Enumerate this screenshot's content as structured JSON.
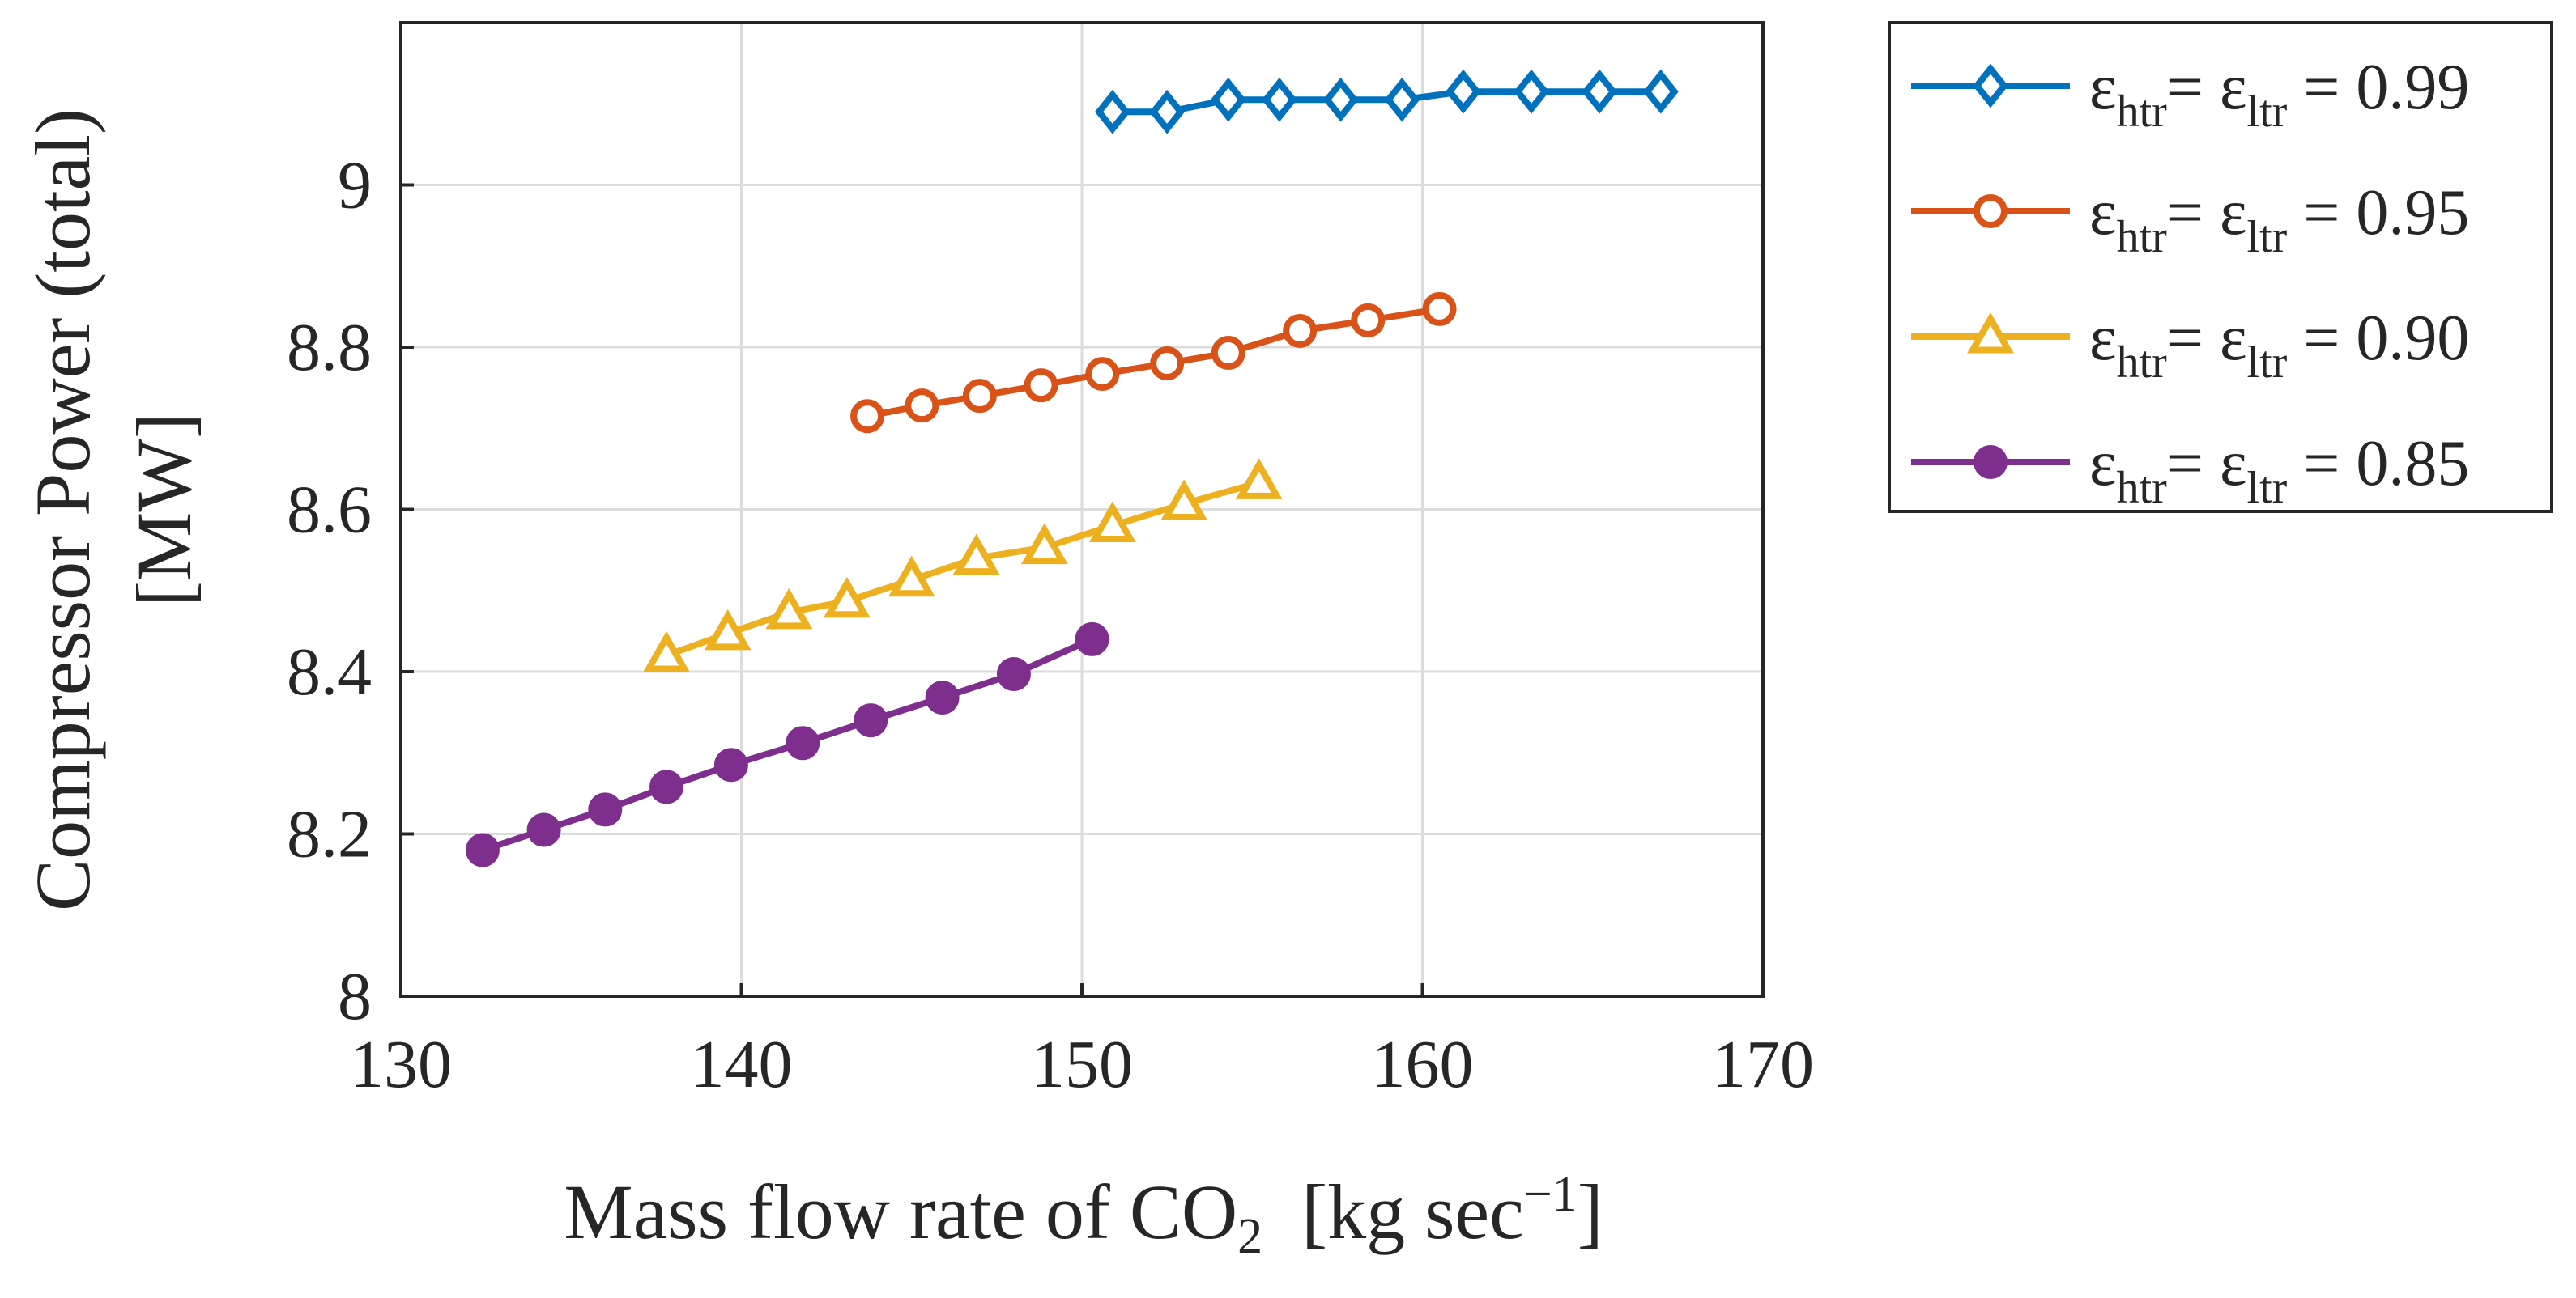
{
  "chart_data": {
    "type": "line",
    "title": "",
    "xlabel": {
      "main": "Mass flow rate of CO",
      "subscript": "2",
      "unit_open": "[kg sec",
      "superscript": "−1",
      "unit_close": "]"
    },
    "ylabel": {
      "line1": "Compressor Power (total)",
      "line2": "[MW]"
    },
    "xlim": [
      130,
      170
    ],
    "ylim": [
      8,
      9.2
    ],
    "xticks": [
      130,
      140,
      150,
      160,
      170
    ],
    "yticks": [
      8,
      8.2,
      8.4,
      8.6,
      8.8,
      9
    ],
    "xtick_labels": [
      "130",
      "140",
      "150",
      "160",
      "170"
    ],
    "ytick_labels": [
      "8",
      "8.2",
      "8.4",
      "8.6",
      "8.8",
      "9"
    ],
    "grid": true,
    "legend_position": "outside-top-right",
    "series": [
      {
        "name": "eps-099",
        "legend": {
          "eps": "ε",
          "sub1": "htr",
          "eq": "= ",
          "sub2": "ltr",
          "value": " = 0.99"
        },
        "color": "#0072BD",
        "marker": "diamond",
        "filled": false,
        "x": [
          150.9,
          152.5,
          154.3,
          155.8,
          157.6,
          159.4,
          161.2,
          163.2,
          165.2,
          167.0
        ],
        "y": [
          9.09,
          9.09,
          9.105,
          9.105,
          9.105,
          9.105,
          9.115,
          9.115,
          9.115,
          9.115
        ]
      },
      {
        "name": "eps-095",
        "legend": {
          "eps": "ε",
          "sub1": "htr",
          "eq": "= ",
          "sub2": "ltr",
          "value": " = 0.95"
        },
        "color": "#D95319",
        "marker": "circle",
        "filled": false,
        "x": [
          143.7,
          145.3,
          147.0,
          148.8,
          150.6,
          152.5,
          154.3,
          156.4,
          158.4,
          160.5
        ],
        "y": [
          8.715,
          8.728,
          8.74,
          8.753,
          8.767,
          8.78,
          8.793,
          8.82,
          8.833,
          8.847
        ]
      },
      {
        "name": "eps-090",
        "legend": {
          "eps": "ε",
          "sub1": "htr",
          "eq": "= ",
          "sub2": "ltr",
          "value": " = 0.90"
        },
        "color": "#EDB120",
        "marker": "triangle",
        "filled": false,
        "x": [
          137.8,
          139.6,
          141.4,
          143.1,
          145.0,
          146.9,
          148.9,
          150.9,
          153.0,
          155.2
        ],
        "y": [
          8.42,
          8.447,
          8.473,
          8.487,
          8.513,
          8.54,
          8.553,
          8.58,
          8.607,
          8.633
        ]
      },
      {
        "name": "eps-085",
        "legend": {
          "eps": "ε",
          "sub1": "htr",
          "eq": "= ",
          "sub2": "ltr",
          "value": " = 0.85"
        },
        "color": "#7E2F8E",
        "marker": "circle",
        "filled": true,
        "x": [
          132.4,
          134.2,
          136.0,
          137.8,
          139.7,
          141.8,
          143.8,
          145.9,
          148.0,
          150.3
        ],
        "y": [
          8.18,
          8.205,
          8.23,
          8.258,
          8.285,
          8.312,
          8.34,
          8.368,
          8.397,
          8.44
        ]
      }
    ]
  }
}
